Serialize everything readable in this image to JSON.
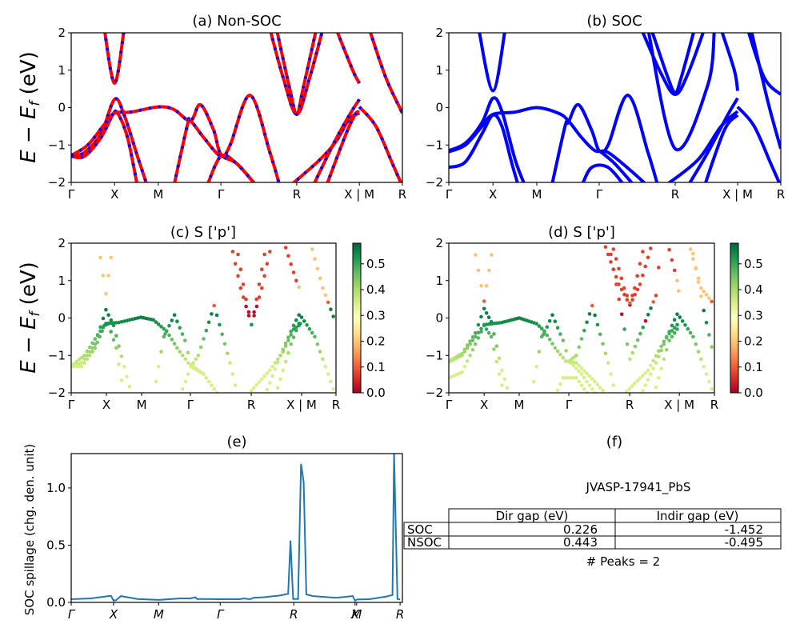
{
  "figure": {
    "material": "JVASP-17941_PbS",
    "peaks_text": "# Peaks = 2"
  },
  "chart_data": [
    {
      "id": "a",
      "type": "line",
      "title": "(a) Non-SOC",
      "ylabel": "E − E_f (eV)",
      "ylabel_parts": {
        "E1": "E",
        "minus": " − ",
        "E2": "E",
        "sub": "f",
        "unit": " (eV)"
      },
      "xlabel": "",
      "ylim": [
        -2,
        2
      ],
      "yticks": [
        -2,
        -1,
        0,
        1,
        2
      ],
      "xticks": [
        {
          "label": "Γ",
          "k": 0.0
        },
        {
          "label": "X",
          "k": 0.131
        },
        {
          "label": "M",
          "k": 0.263
        },
        {
          "label": "Γ",
          "k": 0.452
        },
        {
          "label": "R",
          "k": 0.681
        },
        {
          "label": "X | M",
          "k": 0.87
        },
        {
          "label": "R",
          "k": 1.0
        }
      ],
      "style": "red line with blue dashes (spin up/down overlay)",
      "colors": {
        "line": "#ff0000",
        "dash": "#0000ff"
      },
      "bands": [
        [
          [
            0,
            -1.3
          ],
          [
            0.04,
            -1.2
          ],
          [
            0.09,
            -0.7
          ],
          [
            0.131,
            0.22
          ],
          [
            0.16,
            -0.2
          ],
          [
            0.2,
            -1.3
          ],
          [
            0.23,
            -2.1
          ]
        ],
        [
          [
            0,
            -1.3
          ],
          [
            0.04,
            -1.3
          ],
          [
            0.09,
            -0.8
          ],
          [
            0.125,
            -0.2
          ],
          [
            0.14,
            -0.15
          ],
          [
            0.17,
            -0.8
          ],
          [
            0.2,
            -2.1
          ]
        ],
        [
          [
            0.1,
            2.1
          ],
          [
            0.131,
            0.65
          ],
          [
            0.16,
            2.1
          ]
        ],
        [
          [
            0.0,
            -1.28
          ],
          [
            0.05,
            -1.0
          ],
          [
            0.1,
            -0.45
          ],
          [
            0.131,
            -0.15
          ],
          [
            0.18,
            -0.12
          ],
          [
            0.263,
            0.02
          ],
          [
            0.31,
            -0.05
          ],
          [
            0.36,
            -0.35
          ],
          [
            0.39,
            0.08
          ],
          [
            0.43,
            -0.6
          ],
          [
            0.452,
            -1.25
          ],
          [
            0.5,
            -1.5
          ],
          [
            0.56,
            -2.1
          ]
        ],
        [
          [
            0.31,
            -2.1
          ],
          [
            0.35,
            -0.5
          ],
          [
            0.36,
            -0.35
          ],
          [
            0.4,
            -0.8
          ],
          [
            0.452,
            -1.3
          ],
          [
            0.48,
            -1.0
          ],
          [
            0.54,
            0.33
          ],
          [
            0.6,
            -1.2
          ],
          [
            0.63,
            -2.1
          ]
        ],
        [
          [
            0.41,
            -2.1
          ],
          [
            0.452,
            -1.3
          ],
          [
            0.5,
            -1.5
          ],
          [
            0.56,
            -2.1
          ]
        ],
        [
          [
            0.6,
            2.1
          ],
          [
            0.64,
            0.8
          ],
          [
            0.681,
            -0.18
          ],
          [
            0.72,
            0.8
          ],
          [
            0.76,
            2.1
          ]
        ],
        [
          [
            0.62,
            2.1
          ],
          [
            0.66,
            0.5
          ],
          [
            0.681,
            -0.18
          ],
          [
            0.7,
            0.5
          ],
          [
            0.74,
            2.1
          ]
        ],
        [
          [
            0.66,
            -2.1
          ],
          [
            0.75,
            -1.4
          ],
          [
            0.8,
            -0.9
          ],
          [
            0.84,
            -0.3
          ],
          [
            0.87,
            -0.15
          ]
        ],
        [
          [
            0.73,
            -2.1
          ],
          [
            0.79,
            -1.0
          ],
          [
            0.84,
            -0.2
          ],
          [
            0.87,
            0.22
          ]
        ],
        [
          [
            0.77,
            -2.1
          ],
          [
            0.83,
            -0.7
          ],
          [
            0.86,
            -0.15
          ],
          [
            0.87,
            -0.15
          ]
        ],
        [
          [
            0.8,
            2.1
          ],
          [
            0.85,
            1.0
          ],
          [
            0.87,
            0.65
          ]
        ],
        [
          [
            0.87,
            0.02
          ],
          [
            0.92,
            -0.5
          ],
          [
            0.97,
            -1.5
          ],
          [
            1.0,
            -2.1
          ]
        ],
        [
          [
            0.9,
            2.1
          ],
          [
            0.95,
            0.8
          ],
          [
            1.0,
            -0.15
          ]
        ]
      ]
    },
    {
      "id": "b",
      "type": "line",
      "title": "(b) SOC",
      "ylim": [
        -2,
        2
      ],
      "yticks": [
        -2,
        -1,
        0,
        1,
        2
      ],
      "xticks": [
        {
          "label": "Γ",
          "k": 0.0
        },
        {
          "label": "X",
          "k": 0.133
        },
        {
          "label": "M",
          "k": 0.265
        },
        {
          "label": "Γ",
          "k": 0.453
        },
        {
          "label": "R",
          "k": 0.682
        },
        {
          "label": "X | M",
          "k": 0.87
        },
        {
          "label": "R",
          "k": 1.0
        }
      ],
      "colors": {
        "line": "#0000ff"
      },
      "bands": [
        [
          [
            0,
            -1.18
          ],
          [
            0.05,
            -1.0
          ],
          [
            0.1,
            -0.5
          ],
          [
            0.133,
            -0.18
          ],
          [
            0.2,
            -0.12
          ],
          [
            0.265,
            0.0
          ],
          [
            0.33,
            -0.15
          ],
          [
            0.36,
            -0.35
          ],
          [
            0.4,
            -0.8
          ],
          [
            0.44,
            -1.15
          ],
          [
            0.48,
            -1.2
          ],
          [
            0.55,
            -1.7
          ],
          [
            0.6,
            -2.1
          ]
        ],
        [
          [
            0,
            -1.15
          ],
          [
            0.05,
            -0.95
          ],
          [
            0.1,
            -0.4
          ],
          [
            0.133,
            0.25
          ],
          [
            0.16,
            -0.1
          ],
          [
            0.2,
            -1.4
          ],
          [
            0.23,
            -2.1
          ]
        ],
        [
          [
            0,
            -1.6
          ],
          [
            0.05,
            -1.45
          ],
          [
            0.1,
            -0.7
          ],
          [
            0.133,
            -0.2
          ],
          [
            0.16,
            -0.5
          ],
          [
            0.19,
            -1.5
          ],
          [
            0.21,
            -2.1
          ]
        ],
        [
          [
            0.09,
            2.1
          ],
          [
            0.133,
            0.45
          ],
          [
            0.17,
            2.1
          ]
        ],
        [
          [
            0.31,
            -2.1
          ],
          [
            0.35,
            -0.5
          ],
          [
            0.36,
            -0.4
          ],
          [
            0.39,
            0.08
          ],
          [
            0.43,
            -0.6
          ],
          [
            0.453,
            -1.15
          ],
          [
            0.48,
            -1.0
          ],
          [
            0.54,
            0.33
          ],
          [
            0.6,
            -1.2
          ],
          [
            0.63,
            -2.1
          ]
        ],
        [
          [
            0.4,
            -2.1
          ],
          [
            0.43,
            -1.6
          ],
          [
            0.48,
            -1.6
          ],
          [
            0.53,
            -2.1
          ]
        ],
        [
          [
            0.46,
            -1.2
          ],
          [
            0.5,
            -1.5
          ],
          [
            0.56,
            -2.1
          ]
        ],
        [
          [
            0.58,
            2.1
          ],
          [
            0.64,
            0.9
          ],
          [
            0.682,
            0.35
          ],
          [
            0.72,
            0.9
          ],
          [
            0.77,
            2.1
          ]
        ],
        [
          [
            0.61,
            2.1
          ],
          [
            0.66,
            0.8
          ],
          [
            0.682,
            0.4
          ],
          [
            0.7,
            0.8
          ],
          [
            0.74,
            2.1
          ]
        ],
        [
          [
            0.6,
            2.1
          ],
          [
            0.682,
            -1.1
          ],
          [
            0.78,
            0.6
          ],
          [
            0.8,
            2.1
          ]
        ],
        [
          [
            0.65,
            -2.1
          ],
          [
            0.75,
            -1.4
          ],
          [
            0.82,
            -0.5
          ],
          [
            0.87,
            -0.1
          ]
        ],
        [
          [
            0.72,
            -2.1
          ],
          [
            0.78,
            -1.2
          ],
          [
            0.84,
            -0.2
          ],
          [
            0.87,
            0.25
          ]
        ],
        [
          [
            0.77,
            -2.1
          ],
          [
            0.83,
            -0.6
          ],
          [
            0.87,
            -0.2
          ]
        ],
        [
          [
            0.82,
            2.1
          ],
          [
            0.86,
            1.0
          ],
          [
            0.87,
            0.45
          ]
        ],
        [
          [
            0.87,
            0.02
          ],
          [
            0.92,
            -0.5
          ],
          [
            0.97,
            -1.5
          ],
          [
            1.0,
            -2.1
          ]
        ],
        [
          [
            0.9,
            2.1
          ],
          [
            0.95,
            0.8
          ],
          [
            1.0,
            0.35
          ]
        ],
        [
          [
            0.91,
            2.1
          ],
          [
            0.96,
            0.2
          ],
          [
            1.0,
            -1.1
          ]
        ]
      ]
    },
    {
      "id": "c",
      "type": "scatter",
      "title": "(c)  S ['p']",
      "ylabel": "E − E_f (eV)",
      "ylim": [
        -2,
        2
      ],
      "yticks": [
        -2,
        -1,
        0,
        1,
        2
      ],
      "xticks": [
        {
          "label": "Γ",
          "k": 0.0
        },
        {
          "label": "X",
          "k": 0.133
        },
        {
          "label": "M",
          "k": 0.266
        },
        {
          "label": "Γ",
          "k": 0.45
        },
        {
          "label": "R",
          "k": 0.68
        },
        {
          "label": "X | M",
          "k": 0.87
        },
        {
          "label": "R",
          "k": 1.0
        }
      ],
      "colorbar": {
        "cmap": "RdYlGn",
        "range": [
          0,
          0.58
        ],
        "ticks": [
          "0.0",
          "0.1",
          "0.2",
          "0.3",
          "0.4",
          "0.5"
        ]
      },
      "note": "points colored by S p-orbital projection weight"
    },
    {
      "id": "d",
      "type": "scatter",
      "title": "(d) S ['p']",
      "ylim": [
        -2,
        2
      ],
      "yticks": [
        -2,
        -1,
        0,
        1,
        2
      ],
      "xticks": [
        {
          "label": "Γ",
          "k": 0.0
        },
        {
          "label": "X",
          "k": 0.133
        },
        {
          "label": "M",
          "k": 0.265
        },
        {
          "label": "Γ",
          "k": 0.452
        },
        {
          "label": "R",
          "k": 0.681
        },
        {
          "label": "X | M",
          "k": 0.868
        },
        {
          "label": "R",
          "k": 1.0
        }
      ],
      "colorbar": {
        "cmap": "RdYlGn",
        "range": [
          0,
          0.58
        ],
        "ticks": [
          "0.0",
          "0.1",
          "0.2",
          "0.3",
          "0.4",
          "0.5"
        ]
      }
    },
    {
      "id": "e",
      "type": "line",
      "title": "(e)",
      "ylabel": "SOC spillage (chg. den. unit)",
      "ylim": [
        0,
        1.3
      ],
      "yticks": [
        "0.0",
        "0.5",
        "1.0"
      ],
      "ytick_values": [
        0,
        0.5,
        1.0
      ],
      "xticks": [
        {
          "label": "Γ",
          "k": 0.0
        },
        {
          "label": "X",
          "k": 0.128
        },
        {
          "label": "M",
          "k": 0.264
        },
        {
          "label": "Γ",
          "k": 0.45
        },
        {
          "label": "R",
          "k": 0.672
        },
        {
          "label": "X",
          "k": 0.857
        },
        {
          "label": "M",
          "k": 0.862
        },
        {
          "label": "R",
          "k": 0.993
        }
      ],
      "color": "#1f77b4",
      "x": [
        0.0,
        0.06,
        0.12,
        0.128,
        0.136,
        0.15,
        0.2,
        0.264,
        0.33,
        0.36,
        0.375,
        0.38,
        0.45,
        0.51,
        0.52,
        0.54,
        0.55,
        0.58,
        0.63,
        0.655,
        0.662,
        0.67,
        0.672,
        0.685,
        0.694,
        0.702,
        0.71,
        0.73,
        0.8,
        0.85,
        0.857,
        0.862,
        0.9,
        0.95,
        0.97,
        0.975,
        0.985,
        0.993
      ],
      "y": [
        0.028,
        0.035,
        0.058,
        0.015,
        0.02,
        0.055,
        0.03,
        0.022,
        0.035,
        0.035,
        0.045,
        0.03,
        0.028,
        0.028,
        0.035,
        0.028,
        0.04,
        0.045,
        0.06,
        0.075,
        0.54,
        0.03,
        0.03,
        0.03,
        1.21,
        1.05,
        0.07,
        0.055,
        0.04,
        0.055,
        0.015,
        0.025,
        0.028,
        0.05,
        0.065,
        1.3,
        0.03,
        0.025
      ]
    },
    {
      "id": "f",
      "type": "table",
      "title": "(f)",
      "caption": "JVASP-17941_PbS",
      "columns": [
        "Dir gap (eV)",
        "Indir gap (eV)"
      ],
      "rows": [
        {
          "label": "SOC",
          "values": [
            "0.226",
            "-1.452"
          ]
        },
        {
          "label": "NSOC",
          "values": [
            "0.443",
            "-0.495"
          ]
        }
      ],
      "footer": "# Peaks = 2"
    }
  ]
}
